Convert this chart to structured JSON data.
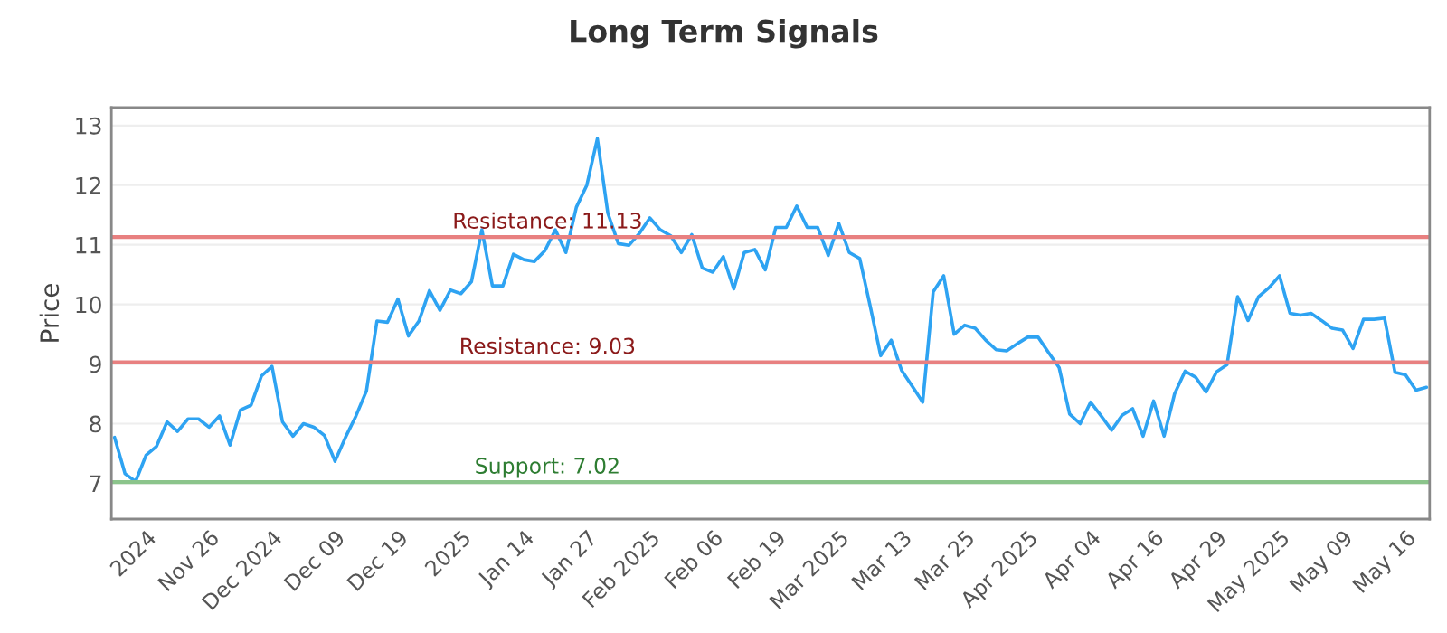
{
  "chart_data": {
    "type": "line",
    "title": "Long Term Signals",
    "ylabel": "Price",
    "categories": [
      null,
      null,
      null,
      "2024",
      null,
      null,
      null,
      null,
      null,
      "Nov 26",
      null,
      null,
      null,
      null,
      null,
      "Dec 2024",
      null,
      null,
      null,
      null,
      null,
      "Dec 09",
      null,
      null,
      null,
      null,
      null,
      "Dec 19",
      null,
      null,
      null,
      null,
      null,
      "2025",
      null,
      null,
      null,
      null,
      null,
      "Jan 14",
      null,
      null,
      null,
      null,
      null,
      "Jan 27",
      null,
      null,
      null,
      null,
      null,
      "Feb 2025",
      null,
      null,
      null,
      null,
      null,
      "Feb 06",
      null,
      null,
      null,
      null,
      null,
      "Feb 19",
      null,
      null,
      null,
      null,
      null,
      "Mar 2025",
      null,
      null,
      null,
      null,
      null,
      "Mar 13",
      null,
      null,
      null,
      null,
      null,
      "Mar 25",
      null,
      null,
      null,
      null,
      null,
      "Apr 2025",
      null,
      null,
      null,
      null,
      null,
      "Apr 04",
      null,
      null,
      null,
      null,
      null,
      "Apr 16",
      null,
      null,
      null,
      null,
      null,
      "Apr 29",
      null,
      null,
      null,
      null,
      null,
      "May 2025",
      null,
      null,
      null,
      null,
      null,
      "May 09",
      null,
      null,
      null,
      null,
      null,
      "May 16",
      null,
      null
    ],
    "series": [
      {
        "color": "#2ea3f2",
        "values": [
          7.77,
          7.16,
          7.03,
          7.47,
          7.62,
          8.03,
          7.87,
          8.08,
          8.08,
          7.94,
          8.13,
          7.64,
          8.23,
          8.31,
          8.8,
          8.96,
          8.03,
          7.79,
          8.0,
          7.94,
          7.8,
          7.37,
          7.77,
          8.13,
          8.55,
          9.72,
          9.7,
          10.09,
          9.47,
          9.72,
          10.23,
          9.9,
          10.24,
          10.18,
          10.38,
          11.25,
          10.31,
          10.31,
          10.84,
          10.75,
          10.72,
          10.9,
          11.25,
          10.87,
          11.63,
          12.0,
          12.78,
          11.53,
          11.02,
          10.99,
          11.19,
          11.45,
          11.25,
          11.15,
          10.87,
          11.17,
          10.61,
          10.54,
          10.8,
          10.26,
          10.87,
          10.92,
          10.58,
          11.29,
          11.29,
          11.65,
          11.29,
          11.29,
          10.82,
          11.36,
          10.87,
          10.77,
          9.97,
          9.14,
          9.4,
          8.89,
          8.63,
          8.36,
          10.21,
          10.48,
          9.5,
          9.65,
          9.6,
          9.4,
          9.24,
          9.22,
          9.34,
          9.45,
          9.45,
          9.19,
          8.94,
          8.16,
          8.0,
          8.36,
          8.13,
          7.89,
          8.14,
          8.25,
          7.79,
          8.38,
          7.79,
          8.5,
          8.88,
          8.78,
          8.53,
          8.87,
          8.99,
          10.13,
          9.73,
          10.13,
          10.28,
          10.48,
          9.85,
          9.82,
          9.85,
          9.73,
          9.6,
          9.57,
          9.26,
          9.75,
          9.75,
          9.77,
          8.86,
          8.82,
          8.56,
          8.61
        ]
      }
    ],
    "ylim": [
      6.4,
      13.3
    ],
    "yticks": [
      7,
      8,
      9,
      10,
      11,
      12,
      13
    ],
    "grid": "y",
    "marker": "none",
    "line_style": "solid",
    "ref_lines": [
      {
        "axis": "y",
        "value": 11.13,
        "label": "Resistance: 11.13",
        "color": "#e88080"
      },
      {
        "axis": "y",
        "value": 9.03,
        "label": "Resistance: 9.03",
        "color": "#e88080"
      },
      {
        "axis": "y",
        "value": 7.02,
        "label": "Support: 7.02",
        "color": "#8bc48b"
      }
    ]
  }
}
